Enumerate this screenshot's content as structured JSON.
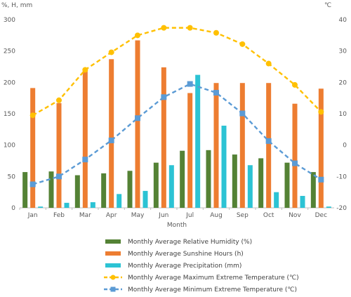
{
  "chart_data": {
    "type": "bar",
    "categories": [
      "Jan",
      "Feb",
      "Mar",
      "Apr",
      "May",
      "Jun",
      "Jul",
      "Aug",
      "Sep",
      "Oct",
      "Nov",
      "Dec"
    ],
    "xlabel": "Month",
    "ylabel_left": "%, H, mm",
    "ylabel_right": "℃",
    "ylim_left": [
      0,
      300
    ],
    "ylim_right": [
      -20,
      40
    ],
    "yticks_left": [
      0,
      50,
      100,
      150,
      200,
      250,
      300
    ],
    "yticks_right": [
      -20,
      -10,
      0,
      10,
      20,
      30,
      40
    ],
    "grid": false,
    "legend_position": "bottom",
    "series": [
      {
        "name": "Monthly Average Relative Humidity (%)",
        "kind": "bar",
        "axis": "left",
        "color": "#548235",
        "values": [
          57,
          58,
          52,
          55,
          59,
          72,
          91,
          92,
          85,
          79,
          72,
          57
        ]
      },
      {
        "name": "Monthly Average Sunshine Hours (h)",
        "kind": "bar",
        "axis": "left",
        "color": "#ED7D31",
        "values": [
          191,
          167,
          218,
          237,
          267,
          224,
          183,
          199,
          199,
          199,
          166,
          190
        ]
      },
      {
        "name": "Monthly Average Precipitation (mm)",
        "kind": "bar",
        "axis": "left",
        "color": "#2CC3D4",
        "values": [
          2,
          8,
          9,
          22,
          27,
          68,
          212,
          131,
          68,
          25,
          19,
          2
        ]
      },
      {
        "name": "Monthly Average Maximum Extreme Temperature (℃)",
        "kind": "line",
        "axis": "right",
        "color": "#FFC000",
        "values": [
          9.5,
          14.3,
          24.0,
          29.6,
          35.0,
          37.4,
          37.4,
          35.8,
          32.2,
          26.0,
          19.2,
          10.6
        ]
      },
      {
        "name": "Monthly Average Minimum Extreme Temperature (℃)",
        "kind": "line",
        "axis": "right",
        "color": "#5B9BD5",
        "values": [
          -12.5,
          -10.0,
          -4.6,
          1.5,
          8.6,
          15.3,
          19.5,
          16.7,
          10.1,
          1.3,
          -5.8,
          -11.0
        ]
      }
    ]
  }
}
